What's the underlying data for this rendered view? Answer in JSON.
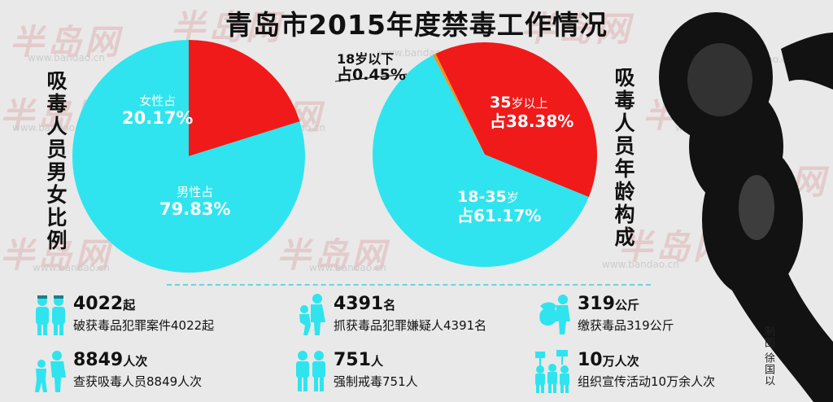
{
  "title": "青岛市2015年度禁毒工作情况",
  "watermark": {
    "text": "半岛网",
    "url": "www.bandao.cn"
  },
  "credit": "制图 徐国以",
  "colors": {
    "red": "#f01a1a",
    "cyan": "#2fe4ee",
    "orange": "#f0921c",
    "dark": "#111111"
  },
  "chart_data": [
    {
      "type": "pie",
      "title": "吸毒人员男女比例",
      "slices": [
        {
          "label": "女性占",
          "value": 20.17,
          "display": "20.17%",
          "color": "#f01a1a"
        },
        {
          "label": "男性占",
          "value": 79.83,
          "display": "79.83%",
          "color": "#2fe4ee"
        }
      ]
    },
    {
      "type": "pie",
      "title": "吸毒人员年龄构成",
      "slices": [
        {
          "label": "35岁以上",
          "prefix": "占",
          "value": 38.38,
          "display": "38.38%",
          "color": "#f01a1a"
        },
        {
          "label": "18-35岁",
          "prefix": "占",
          "value": 61.17,
          "display": "61.17%",
          "color": "#2fe4ee"
        },
        {
          "label": "18岁以下",
          "prefix": "占",
          "value": 0.45,
          "display": "0.45%",
          "color": "#f0921c"
        }
      ]
    }
  ],
  "pie1": {
    "female_label": "女性占",
    "female_value": "20.17%",
    "male_label": "男性占",
    "male_value": "79.83%"
  },
  "pie2": {
    "under18_label": "18岁以下",
    "under18_value": "占0.45%",
    "over35_num": "35",
    "over35_unit": "岁以上",
    "over35_value": "占38.38%",
    "mid_num": "18-35",
    "mid_unit": "岁",
    "mid_value": "占61.17%"
  },
  "stats": [
    {
      "big": "4022",
      "unit": "起",
      "desc": "破获毒品犯罪案件4022起",
      "icon": "police-officers-icon"
    },
    {
      "big": "4391",
      "unit": "名",
      "desc": "抓获毒品犯罪嫌疑人4391名",
      "icon": "arrest-icon"
    },
    {
      "big": "319",
      "unit": "公斤",
      "desc": "缴获毒品319公斤",
      "icon": "seized-bag-icon"
    },
    {
      "big": "8849",
      "unit": "人次",
      "desc": "查获吸毒人员8849人次",
      "icon": "detain-icon"
    },
    {
      "big": "751",
      "unit": "人",
      "desc": "强制戒毒751人",
      "icon": "two-people-icon"
    },
    {
      "big": "10",
      "unit": "万人次",
      "desc": "组织宣传活动10万余人次",
      "icon": "crowd-signs-icon"
    }
  ]
}
